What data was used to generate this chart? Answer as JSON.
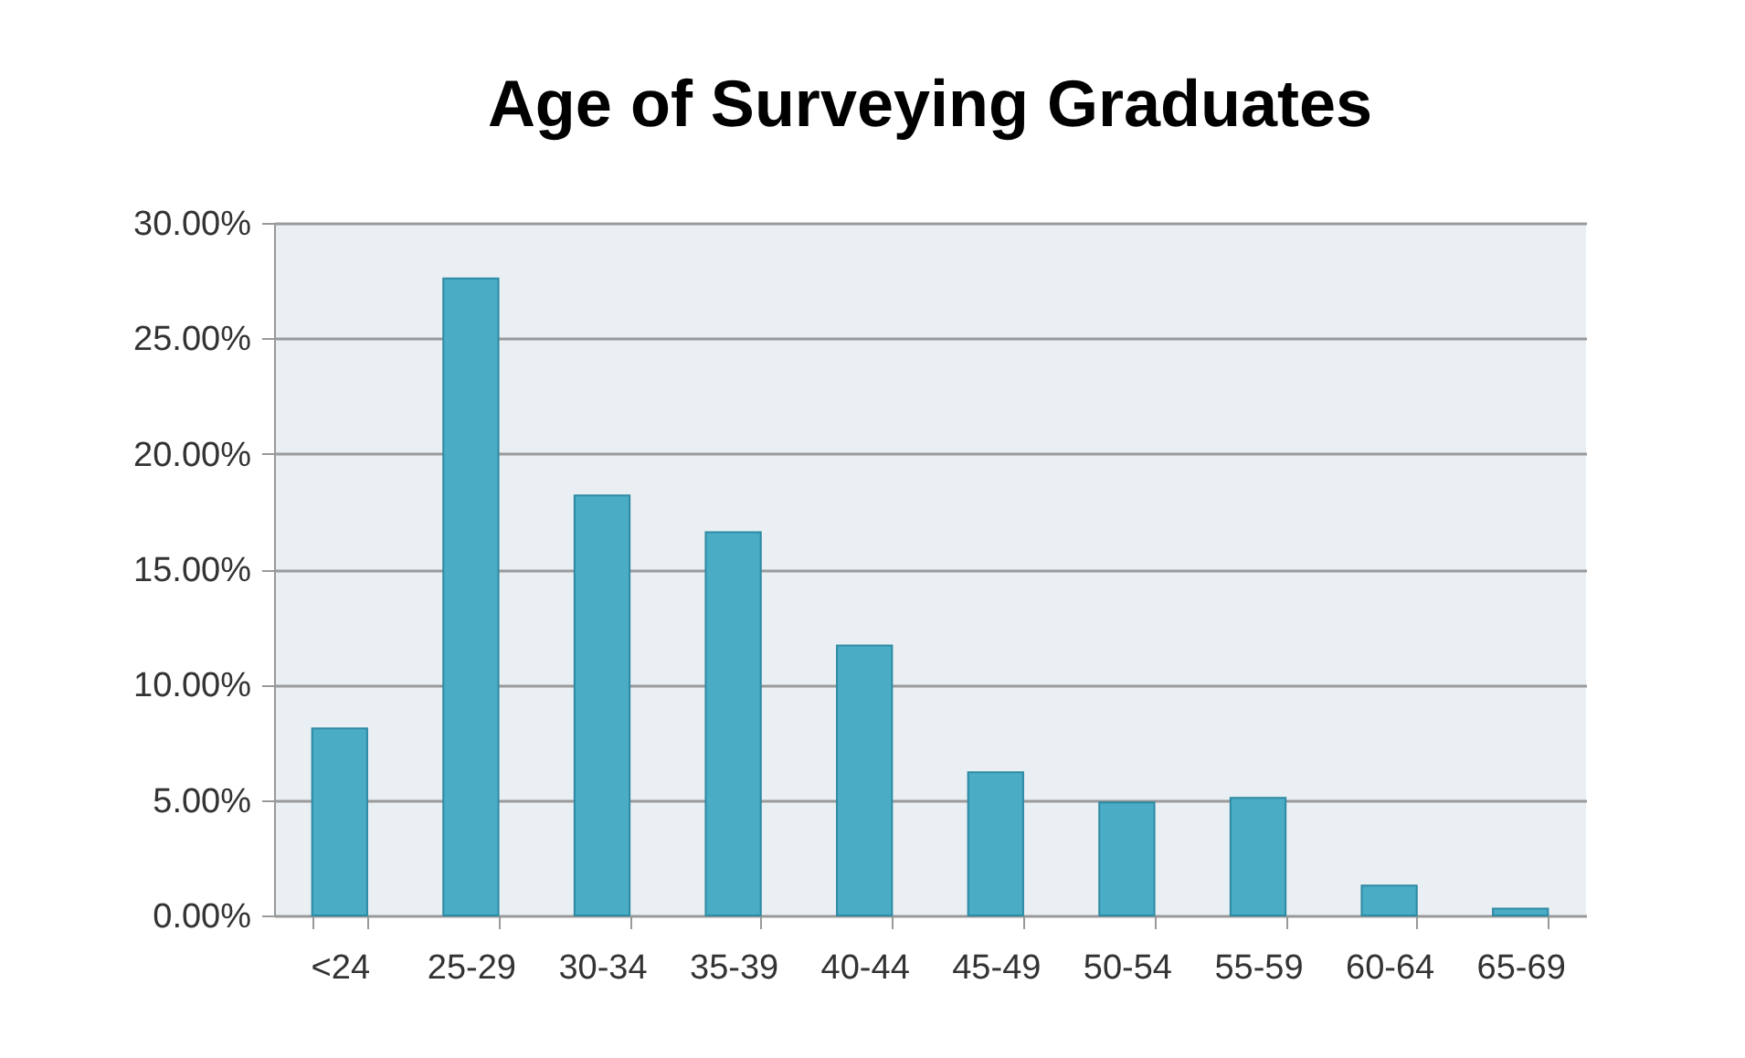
{
  "chart_data": {
    "type": "bar",
    "title": "Age of Surveying Graduates",
    "categories": [
      "<24",
      "25-29",
      "30-34",
      "35-39",
      "40-44",
      "45-49",
      "50-54",
      "55-59",
      "60-64",
      "65-69"
    ],
    "values": [
      8.1,
      27.6,
      18.2,
      16.6,
      11.7,
      6.2,
      4.9,
      5.1,
      1.3,
      0.3
    ],
    "color": "#4bacc6",
    "ylim": [
      0,
      30
    ],
    "yticks": [
      {
        "value": 0,
        "label": "0.00%"
      },
      {
        "value": 5,
        "label": "5.00%"
      },
      {
        "value": 10,
        "label": "10.00%"
      },
      {
        "value": 15,
        "label": "15.00%"
      },
      {
        "value": 20,
        "label": "20.00%"
      },
      {
        "value": 25,
        "label": "25.00%"
      },
      {
        "value": 30,
        "label": "30.00%"
      }
    ],
    "grid": "y"
  }
}
